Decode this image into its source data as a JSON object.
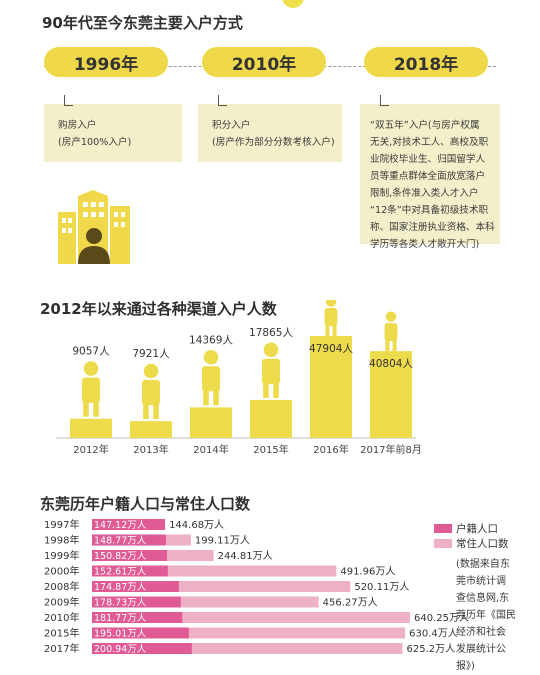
{
  "section1": {
    "title": "90年代至今东莞主要入户方式",
    "eras": [
      {
        "year": "1996年",
        "lines": [
          "购房入户",
          "(房产100%入户)"
        ]
      },
      {
        "year": "2010年",
        "lines": [
          "积分入户",
          "(房产作为部分分数考核入户)"
        ]
      },
      {
        "year": "2018年",
        "lines": [
          "“双五年”入户(与房产权属",
          "无关,对技术工人、高校及职",
          "业院校毕业生、归国留学人",
          "员等重点群体全面放宽落户",
          "限制,条件准入类人才入户",
          "“12条”中对具备初级技术职",
          "称、国家注册执业资格、本科",
          "学历等各类人才敞开大门)"
        ]
      }
    ],
    "colors": {
      "pill": "#efd84a",
      "panel": "#f4efcb"
    }
  },
  "section2": {
    "title": "2012年以来通过各种渠道入户人数",
    "chart_data": {
      "type": "bar",
      "categories": [
        "2012年",
        "2013年",
        "2014年",
        "2015年",
        "2016年",
        "2017年前8月"
      ],
      "values": [
        9057,
        7921,
        14369,
        17865,
        47904,
        40804
      ],
      "value_labels": [
        "9057人",
        "7921人",
        "14369人",
        "17865人",
        "47904人",
        "40804人"
      ],
      "unit": "人",
      "ylim": [
        0,
        47904
      ],
      "color": "#eedb4c",
      "icon": "person-icon"
    }
  },
  "section3": {
    "title": "东莞历年户籍人口与常住人口数",
    "chart_data": {
      "type": "bar",
      "orientation": "horizontal",
      "categories": [
        "1997年",
        "1998年",
        "1999年",
        "2000年",
        "2008年",
        "2009年",
        "2010年",
        "2015年",
        "2017年"
      ],
      "series": [
        {
          "name": "户籍人口",
          "color": "#e05a95",
          "values": [
            147.12,
            148.77,
            150.82,
            152.61,
            174.87,
            178.73,
            181.77,
            195.01,
            200.94
          ],
          "labels": [
            "147.12万人",
            "148.77万人",
            "150.82万人",
            "152.61万人",
            "174.87万人",
            "178.73万人",
            "181.77万人",
            "195.01万人",
            "200.94万人"
          ]
        },
        {
          "name": "常住人口数",
          "color": "#eeb0c4",
          "values": [
            144.68,
            199.11,
            244.81,
            491.96,
            520.11,
            456.27,
            640.25,
            630.4,
            625.2
          ],
          "labels": [
            "144.68万人",
            "199.11万人",
            "244.81万人",
            "491.96万人",
            "520.11万人",
            "456.27万人",
            "640.25万人",
            "630.4万人",
            "625.2万人"
          ]
        }
      ],
      "legend_position": "right"
    },
    "source_note": [
      "(数据来自东",
      "莞市统计调",
      "查信息网,东",
      "莞历年《国民",
      "经济和社会",
      "发展统计公",
      "报》)"
    ]
  }
}
